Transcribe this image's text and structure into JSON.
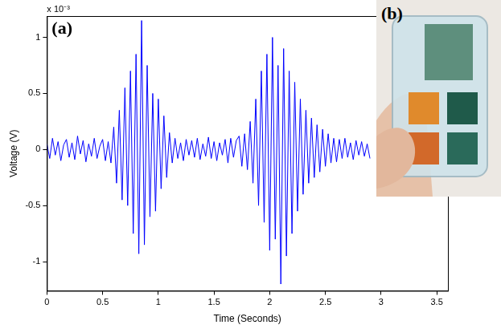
{
  "chart_data": {
    "type": "line",
    "panel_labels": [
      "(a)",
      "(b)"
    ],
    "x_label": "Time (Seconds)",
    "y_label": "Voltage (V)",
    "y_multiplier": "x 10⁻³",
    "x": [
      0,
      0.025,
      0.05,
      0.075,
      0.1,
      0.125,
      0.15,
      0.175,
      0.2,
      0.225,
      0.25,
      0.275,
      0.3,
      0.325,
      0.35,
      0.375,
      0.4,
      0.425,
      0.45,
      0.475,
      0.5,
      0.525,
      0.55,
      0.575,
      0.6,
      0.625,
      0.65,
      0.675,
      0.7,
      0.725,
      0.75,
      0.775,
      0.8,
      0.825,
      0.85,
      0.875,
      0.9,
      0.925,
      0.95,
      0.975,
      1,
      1.025,
      1.05,
      1.075,
      1.1,
      1.125,
      1.15,
      1.175,
      1.2,
      1.225,
      1.25,
      1.275,
      1.3,
      1.325,
      1.35,
      1.375,
      1.4,
      1.425,
      1.45,
      1.475,
      1.5,
      1.525,
      1.55,
      1.575,
      1.6,
      1.625,
      1.65,
      1.675,
      1.7,
      1.725,
      1.75,
      1.775,
      1.8,
      1.825,
      1.85,
      1.875,
      1.9,
      1.925,
      1.95,
      1.975,
      2,
      2.025,
      2.05,
      2.075,
      2.1,
      2.125,
      2.15,
      2.175,
      2.2,
      2.225,
      2.25,
      2.275,
      2.3,
      2.325,
      2.35,
      2.375,
      2.4,
      2.425,
      2.45,
      2.475,
      2.5,
      2.525,
      2.55,
      2.575,
      2.6,
      2.625,
      2.65,
      2.675,
      2.7,
      2.725,
      2.75,
      2.775,
      2.8,
      2.825,
      2.85,
      2.875,
      2.9
    ],
    "values": [
      0.05,
      -0.08,
      0.1,
      -0.05,
      0.07,
      -0.1,
      0.04,
      0.09,
      -0.07,
      0.06,
      -0.09,
      0.12,
      -0.04,
      0.08,
      -0.11,
      0.05,
      -0.06,
      0.1,
      -0.08,
      0.03,
      0.09,
      -0.1,
      0.07,
      -0.12,
      0.2,
      -0.3,
      0.35,
      -0.45,
      0.55,
      -0.5,
      0.7,
      -0.75,
      0.85,
      -0.93,
      1.15,
      -0.85,
      0.75,
      -0.6,
      0.5,
      -0.55,
      0.45,
      -0.35,
      0.3,
      -0.25,
      0.15,
      -0.12,
      0.1,
      -0.08,
      0.06,
      -0.1,
      0.09,
      -0.05,
      0.08,
      -0.07,
      0.1,
      -0.09,
      0.05,
      -0.06,
      0.11,
      -0.08,
      0.07,
      -0.1,
      0.06,
      -0.05,
      0.09,
      -0.12,
      0.1,
      -0.07,
      0.08,
      0.12,
      -0.15,
      0.14,
      -0.18,
      0.25,
      -0.3,
      0.45,
      -0.5,
      0.7,
      -0.65,
      0.85,
      -0.9,
      1.0,
      -0.8,
      0.75,
      -1.2,
      0.9,
      -0.95,
      0.7,
      -0.75,
      0.6,
      -0.55,
      0.45,
      -0.4,
      0.35,
      -0.3,
      0.28,
      -0.25,
      0.22,
      -0.2,
      0.18,
      -0.15,
      0.14,
      -0.12,
      0.1,
      -0.11,
      0.09,
      -0.08,
      0.1,
      -0.07,
      0.06,
      -0.09,
      0.08,
      -0.05,
      0.07,
      -0.06,
      0.05,
      -0.08
    ],
    "color": "#0000ff",
    "marker": "none",
    "xlim": [
      0,
      3.6
    ],
    "ylim": [
      -1.26,
      1.19
    ],
    "xticks": [
      0,
      0.5,
      1,
      1.5,
      2,
      2.5,
      3,
      3.5
    ],
    "yticks": [
      -1,
      -0.5,
      0,
      0.5,
      1
    ],
    "grid": false
  }
}
